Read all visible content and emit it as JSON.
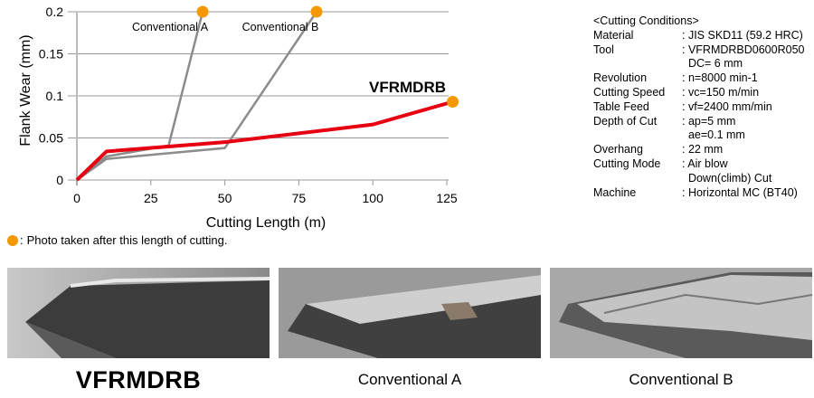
{
  "chart_data": {
    "type": "line",
    "xlabel": "Cutting Length (m)",
    "ylabel": "Flank Wear (mm)",
    "xlim": [
      0,
      125
    ],
    "ylim": [
      0,
      0.2
    ],
    "xticks": [
      "0",
      "25",
      "50",
      "75",
      "100",
      "125"
    ],
    "yticks": [
      "0",
      "0.05",
      "0.1",
      "0.15",
      "0.2"
    ],
    "grid": "horizontal",
    "series": [
      {
        "name": "Conventional A",
        "color": "#8c8c8c",
        "points": [
          [
            0,
            0
          ],
          [
            10,
            0.028
          ],
          [
            31,
            0.041
          ],
          [
            42.5,
            0.2
          ]
        ],
        "marker_at_end": true
      },
      {
        "name": "Conventional B",
        "color": "#8c8c8c",
        "points": [
          [
            0,
            0
          ],
          [
            10,
            0.025
          ],
          [
            50,
            0.038
          ],
          [
            81,
            0.2
          ]
        ],
        "marker_at_end": true
      },
      {
        "name": "VFRMDRB",
        "color": "#e60012",
        "points": [
          [
            0,
            0
          ],
          [
            10,
            0.034
          ],
          [
            50,
            0.045
          ],
          [
            100,
            0.066
          ],
          [
            127,
            0.093
          ]
        ],
        "marker_at_end": true
      }
    ],
    "marker_color": "#f39800"
  },
  "legend": {
    "text": "Photo taken after this length of cutting.",
    "separator": ":"
  },
  "conditions": {
    "title": "<Cutting Conditions>",
    "rows": [
      {
        "k": "Material",
        "v": ": JIS SKD11 (59.2 HRC)"
      },
      {
        "k": "Tool",
        "v": ": VFRMDRBD0600R050"
      },
      {
        "k": "",
        "v": "  DC= 6 mm"
      },
      {
        "k": "Revolution",
        "v": ": n=8000 min-1"
      },
      {
        "k": "Cutting Speed",
        "v": ": vc=150 m/min"
      },
      {
        "k": "Table Feed",
        "v": ": vf=2400 mm/min"
      },
      {
        "k": "Depth of Cut",
        "v": ": ap=5 mm"
      },
      {
        "k": "",
        "v": "  ae=0.1 mm"
      },
      {
        "k": "Overhang",
        "v": ": 22 mm"
      },
      {
        "k": "Cutting Mode",
        "v": ": Air blow"
      },
      {
        "k": "",
        "v": "  Down(climb) Cut"
      },
      {
        "k": "Machine",
        "v": ": Horizontal MC (BT40)"
      }
    ]
  },
  "photos": [
    {
      "caption": "VFRMDRB"
    },
    {
      "caption": "Conventional A"
    },
    {
      "caption": "Conventional B"
    }
  ]
}
